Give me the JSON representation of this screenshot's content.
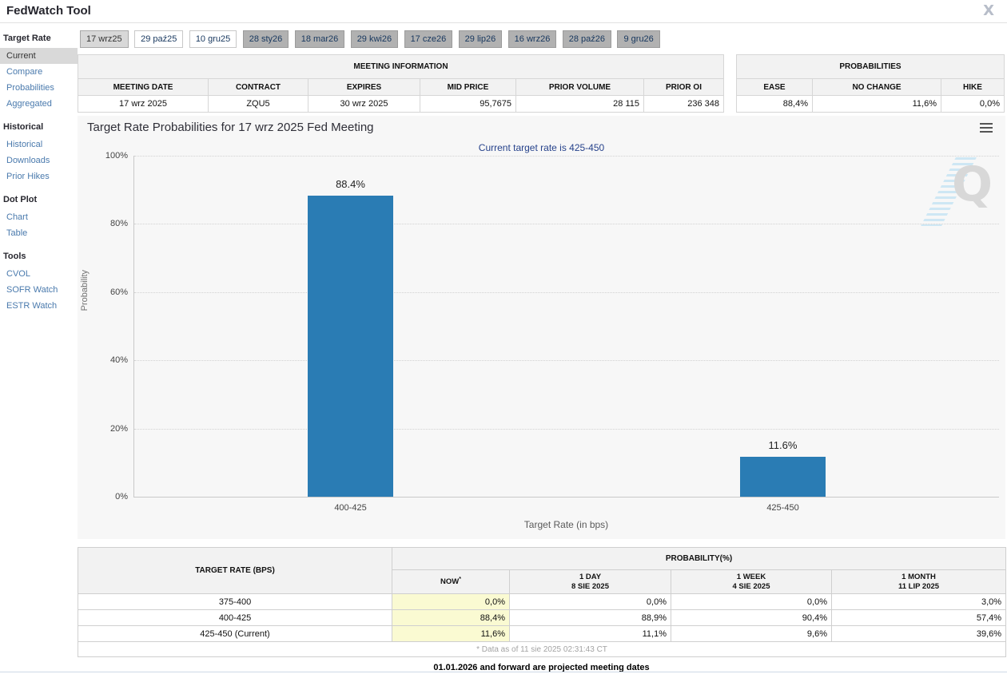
{
  "header": {
    "title": "FedWatch Tool"
  },
  "sidebar": {
    "sections": [
      {
        "title": "Target Rate",
        "items": [
          {
            "label": "Current",
            "active": true
          },
          {
            "label": "Compare"
          },
          {
            "label": "Probabilities"
          },
          {
            "label": "Aggregated"
          }
        ]
      },
      {
        "title": "Historical",
        "items": [
          {
            "label": "Historical"
          },
          {
            "label": "Downloads"
          },
          {
            "label": "Prior Hikes"
          }
        ]
      },
      {
        "title": "Dot Plot",
        "items": [
          {
            "label": "Chart"
          },
          {
            "label": "Table"
          }
        ]
      },
      {
        "title": "Tools",
        "items": [
          {
            "label": "CVOL"
          },
          {
            "label": "SOFR Watch"
          },
          {
            "label": "ESTR Watch"
          }
        ]
      }
    ]
  },
  "date_tabs": [
    {
      "label": "17 wrz25",
      "state": "selected"
    },
    {
      "label": "29 paź25",
      "state": "white"
    },
    {
      "label": "10 gru25",
      "state": "white"
    },
    {
      "label": "28 sty26",
      "state": "gray"
    },
    {
      "label": "18 mar26",
      "state": "gray"
    },
    {
      "label": "29 kwi26",
      "state": "gray"
    },
    {
      "label": "17 cze26",
      "state": "gray"
    },
    {
      "label": "29 lip26",
      "state": "gray"
    },
    {
      "label": "16 wrz26",
      "state": "gray"
    },
    {
      "label": "28 paź26",
      "state": "gray"
    },
    {
      "label": "9 gru26",
      "state": "gray"
    }
  ],
  "meeting_info": {
    "caption": "MEETING INFORMATION",
    "columns": [
      "MEETING DATE",
      "CONTRACT",
      "EXPIRES",
      "MID PRICE",
      "PRIOR VOLUME",
      "PRIOR OI"
    ],
    "values": [
      "17 wrz 2025",
      "ZQU5",
      "30 wrz 2025",
      "95,7675",
      "28 115",
      "236 348"
    ]
  },
  "probabilities_panel": {
    "caption": "PROBABILITIES",
    "columns": [
      "EASE",
      "NO CHANGE",
      "HIKE"
    ],
    "values": [
      "88,4%",
      "11,6%",
      "0,0%"
    ]
  },
  "chart_data": {
    "type": "bar",
    "title": "Target Rate Probabilities for 17 wrz 2025 Fed Meeting",
    "subtitle": "Current target rate is 425-450",
    "categories": [
      "400-425",
      "425-450"
    ],
    "values": [
      88.4,
      11.6
    ],
    "bar_labels": [
      "88.4%",
      "11.6%"
    ],
    "xlabel": "Target Rate (in bps)",
    "ylabel": "Probability",
    "ylim": [
      0,
      100
    ],
    "yticks": [
      "100%",
      "80%",
      "60%",
      "40%",
      "20%",
      "0%"
    ],
    "grid": "dotted horizontal",
    "bar_color": "#2a7cb4",
    "watermark": "Q"
  },
  "probability_table": {
    "col1_header": "TARGET RATE (BPS)",
    "group_header": "PROBABILITY(%)",
    "sub_headers": [
      {
        "label": "NOW",
        "sup": "*",
        "date": ""
      },
      {
        "label": "1 DAY",
        "date": "8 SIE 2025"
      },
      {
        "label": "1 WEEK",
        "date": "4 SIE 2025"
      },
      {
        "label": "1 MONTH",
        "date": "11 LIP 2025"
      }
    ],
    "rows": [
      {
        "rate": "375-400",
        "now": "0,0%",
        "day": "0,0%",
        "week": "0,0%",
        "month": "3,0%"
      },
      {
        "rate": "400-425",
        "now": "88,4%",
        "day": "88,9%",
        "week": "90,4%",
        "month": "57,4%"
      },
      {
        "rate": "425-450 (Current)",
        "now": "11,6%",
        "day": "11,1%",
        "week": "9,6%",
        "month": "39,6%"
      }
    ],
    "footnote": "* Data as of 11 sie 2025 02:31:43 CT"
  },
  "footer_note": "01.01.2026 and forward are projected meeting dates"
}
